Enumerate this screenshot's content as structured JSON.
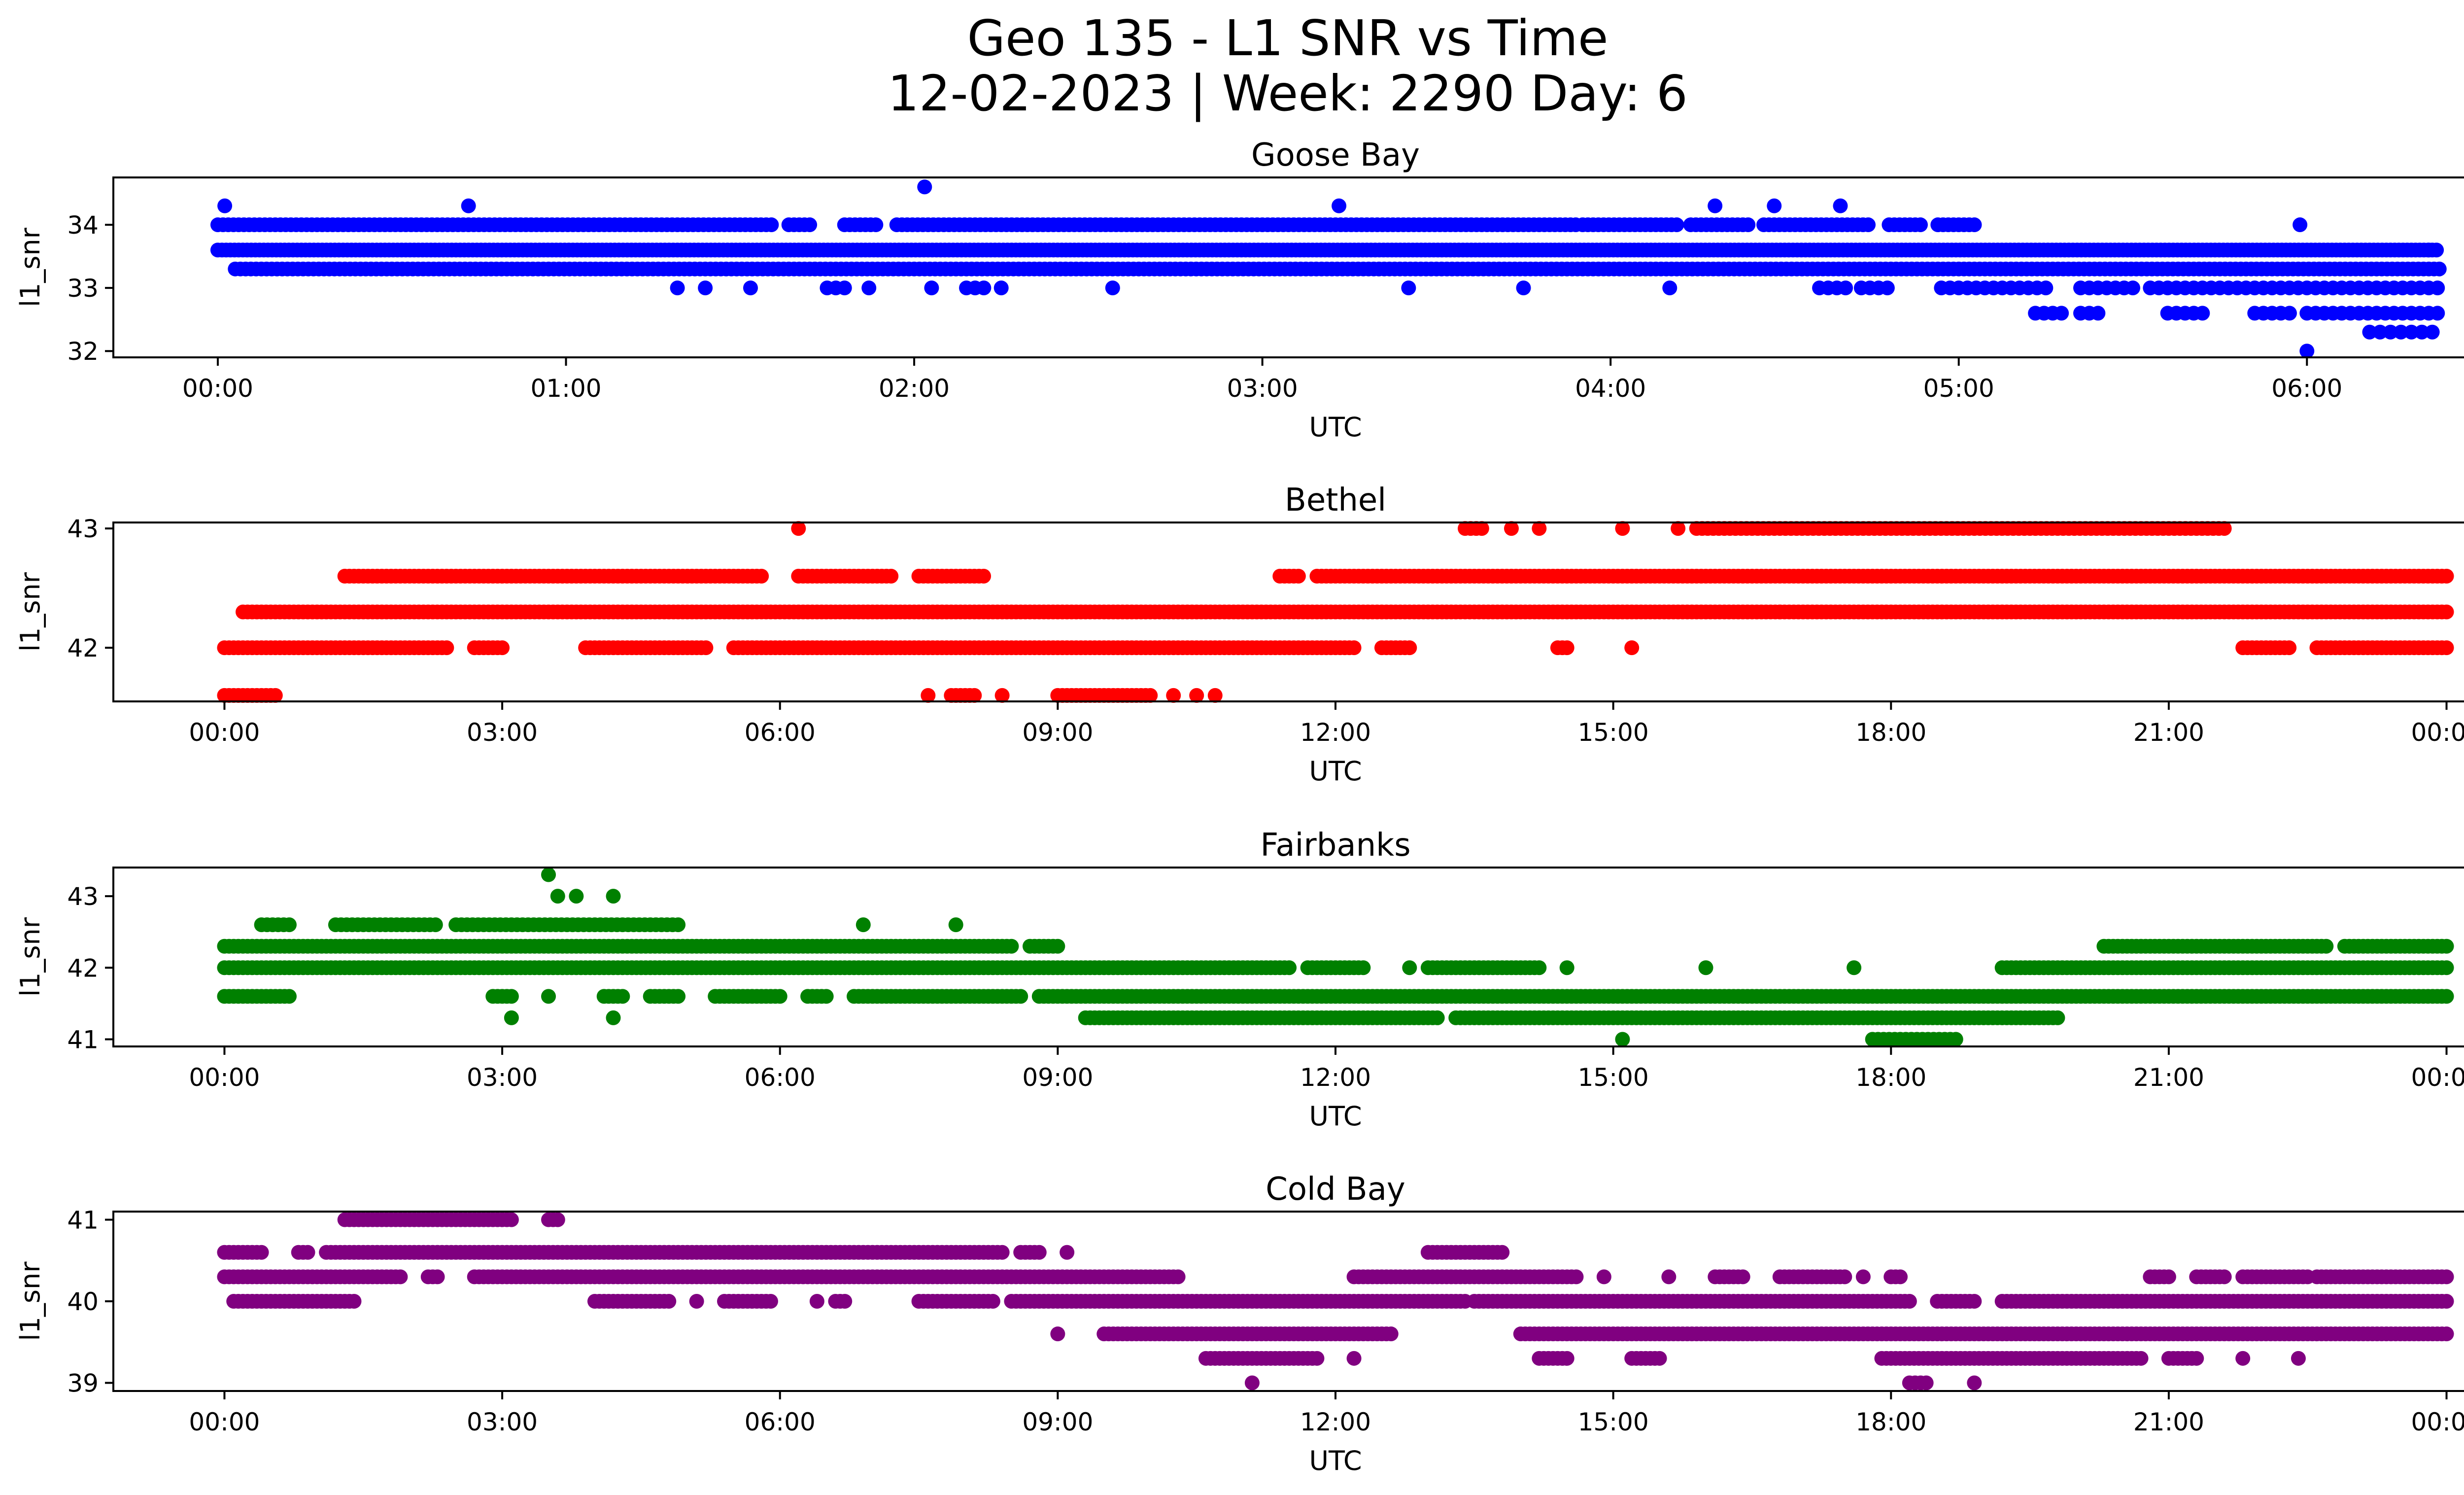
{
  "figure": {
    "title_line1": "Geo 135 - L1 SNR vs Time",
    "title_line2": "12-02-2023 | Week: 2290 Day: 6"
  },
  "chart_data": [
    {
      "type": "scatter",
      "title": "Goose Bay",
      "xlabel": "UTC",
      "ylabel": "l1_snr",
      "color": "#0000ff",
      "x_unit": "hours UTC",
      "xlim": [
        -0.3,
        6.72
      ],
      "ylim": [
        31.9,
        34.75
      ],
      "xticks": [
        {
          "value": 0,
          "label": "00:00"
        },
        {
          "value": 1,
          "label": "01:00"
        },
        {
          "value": 2,
          "label": "02:00"
        },
        {
          "value": 3,
          "label": "03:00"
        },
        {
          "value": 4,
          "label": "04:00"
        },
        {
          "value": 5,
          "label": "05:00"
        },
        {
          "value": 6,
          "label": "06:00"
        }
      ],
      "yticks": [
        {
          "value": 32,
          "label": "32"
        },
        {
          "value": 33,
          "label": "33"
        },
        {
          "value": 34,
          "label": "34"
        }
      ],
      "series": [
        {
          "y": 34.0,
          "segments": [
            [
              0,
              1.6
            ],
            [
              1.64,
              1.7
            ],
            [
              1.8,
              1.9
            ],
            [
              1.95,
              3.9
            ],
            [
              3.92,
              4.2
            ],
            [
              4.23,
              4.4
            ],
            [
              4.44,
              4.75
            ],
            [
              4.8,
              4.9
            ],
            [
              4.94,
              5.05
            ]
          ],
          "step": 0.015
        },
        {
          "y": 33.6,
          "segments": [
            [
              0,
              6.38
            ]
          ],
          "step": 0.012
        },
        {
          "y": 33.3,
          "segments": [
            [
              0.05,
              6.38
            ]
          ],
          "step": 0.015
        },
        {
          "y": 33.0,
          "segments": [
            [
              1.32,
              1.32
            ],
            [
              1.4,
              1.4
            ],
            [
              1.53,
              1.53
            ],
            [
              1.75,
              1.82
            ],
            [
              1.87,
              1.87
            ],
            [
              2.05,
              2.05
            ],
            [
              2.15,
              2.2
            ],
            [
              2.25,
              2.25
            ],
            [
              2.57,
              2.57
            ],
            [
              3.42,
              3.42
            ],
            [
              3.75,
              3.75
            ],
            [
              4.17,
              4.17
            ],
            [
              4.6,
              4.68
            ],
            [
              4.72,
              4.8
            ],
            [
              4.95,
              5.25
            ],
            [
              5.35,
              5.5
            ],
            [
              5.55,
              6.38
            ]
          ],
          "step": 0.025
        },
        {
          "y": 32.6,
          "segments": [
            [
              5.22,
              5.3
            ],
            [
              5.35,
              5.4
            ],
            [
              5.6,
              5.7
            ],
            [
              5.85,
              5.95
            ],
            [
              6.0,
              6.38
            ]
          ],
          "step": 0.025
        },
        {
          "y": 32.3,
          "segments": [
            [
              6.18,
              6.38
            ]
          ],
          "step": 0.03
        }
      ],
      "points": [
        [
          0.02,
          34.3
        ],
        [
          0.72,
          34.3
        ],
        [
          2.03,
          34.6
        ],
        [
          3.22,
          34.3
        ],
        [
          4.3,
          34.3
        ],
        [
          4.47,
          34.3
        ],
        [
          4.66,
          34.3
        ],
        [
          5.98,
          34.0
        ],
        [
          6.0,
          32.0
        ],
        [
          6.35,
          33.6
        ]
      ]
    },
    {
      "type": "scatter",
      "title": "Bethel",
      "xlabel": "UTC",
      "ylabel": "l1_snr",
      "color": "#ff0000",
      "x_unit": "hours UTC",
      "xlim": [
        -1.2,
        25.2
      ],
      "ylim": [
        41.55,
        43.05
      ],
      "xticks": [
        {
          "value": 0,
          "label": "00:00"
        },
        {
          "value": 3,
          "label": "03:00"
        },
        {
          "value": 6,
          "label": "06:00"
        },
        {
          "value": 9,
          "label": "09:00"
        },
        {
          "value": 12,
          "label": "12:00"
        },
        {
          "value": 15,
          "label": "15:00"
        },
        {
          "value": 18,
          "label": "18:00"
        },
        {
          "value": 21,
          "label": "21:00"
        },
        {
          "value": 24,
          "label": "00:00"
        }
      ],
      "yticks": [
        {
          "value": 42,
          "label": "42"
        },
        {
          "value": 43,
          "label": "43"
        }
      ],
      "series": [
        {
          "y": 43.0,
          "segments": [
            [
              13.4,
              13.6
            ],
            [
              13.9,
              13.9
            ],
            [
              14.2,
              14.2
            ],
            [
              15.1,
              15.1
            ],
            [
              15.7,
              15.7
            ],
            [
              15.9,
              21.6
            ]
          ],
          "step": 0.06
        },
        {
          "y": 42.6,
          "segments": [
            [
              1.3,
              5.8
            ],
            [
              6.2,
              7.2
            ],
            [
              7.5,
              8.2
            ],
            [
              11.4,
              11.6
            ],
            [
              11.8,
              24
            ]
          ],
          "step": 0.05
        },
        {
          "y": 42.3,
          "segments": [
            [
              0.2,
              16.8
            ],
            [
              16.8,
              24
            ]
          ],
          "step": 0.05
        },
        {
          "y": 42.0,
          "segments": [
            [
              0,
              2.4
            ],
            [
              2.7,
              3.0
            ],
            [
              3.9,
              5.2
            ],
            [
              5.5,
              12.2
            ],
            [
              12.5,
              12.8
            ],
            [
              14.4,
              14.5
            ],
            [
              15.2,
              15.2
            ],
            [
              21.8,
              22.3
            ],
            [
              22.6,
              24
            ]
          ],
          "step": 0.05
        },
        {
          "y": 41.6,
          "segments": [
            [
              0,
              0.55
            ],
            [
              7.6,
              7.6
            ],
            [
              7.85,
              8.1
            ],
            [
              8.4,
              8.4
            ],
            [
              9.0,
              10.0
            ],
            [
              10.25,
              10.25
            ],
            [
              10.5,
              10.5
            ],
            [
              10.7,
              10.7
            ]
          ],
          "step": 0.05
        }
      ],
      "points": [
        [
          6.2,
          43.0
        ]
      ]
    },
    {
      "type": "scatter",
      "title": "Fairbanks",
      "xlabel": "UTC",
      "ylabel": "l1_snr",
      "color": "#008000",
      "x_unit": "hours UTC",
      "xlim": [
        -1.2,
        25.2
      ],
      "ylim": [
        40.9,
        43.4
      ],
      "xticks": [
        {
          "value": 0,
          "label": "00:00"
        },
        {
          "value": 3,
          "label": "03:00"
        },
        {
          "value": 6,
          "label": "06:00"
        },
        {
          "value": 9,
          "label": "09:00"
        },
        {
          "value": 12,
          "label": "12:00"
        },
        {
          "value": 15,
          "label": "15:00"
        },
        {
          "value": 18,
          "label": "18:00"
        },
        {
          "value": 21,
          "label": "21:00"
        },
        {
          "value": 24,
          "label": "00:00"
        }
      ],
      "yticks": [
        {
          "value": 41,
          "label": "41"
        },
        {
          "value": 42,
          "label": "42"
        },
        {
          "value": 43,
          "label": "43"
        }
      ],
      "series": [
        {
          "y": 42.6,
          "segments": [
            [
              0.4,
              0.7
            ],
            [
              1.2,
              2.3
            ],
            [
              2.5,
              4.9
            ]
          ],
          "step": 0.06
        },
        {
          "y": 42.3,
          "segments": [
            [
              0,
              8.5
            ],
            [
              8.7,
              9.0
            ],
            [
              20.3,
              22.7
            ],
            [
              22.9,
              24
            ]
          ],
          "step": 0.05
        },
        {
          "y": 42.0,
          "segments": [
            [
              0,
              11.5
            ],
            [
              11.7,
              12.3
            ],
            [
              12.8,
              12.8
            ],
            [
              13.0,
              14.2
            ],
            [
              14.5,
              14.5
            ],
            [
              16.0,
              16.0
            ],
            [
              17.6,
              17.6
            ],
            [
              19.2,
              24
            ]
          ],
          "step": 0.05
        },
        {
          "y": 41.6,
          "segments": [
            [
              0,
              0.7
            ],
            [
              2.9,
              3.1
            ],
            [
              3.5,
              3.5
            ],
            [
              4.1,
              4.3
            ],
            [
              4.6,
              4.9
            ],
            [
              5.3,
              6.0
            ],
            [
              6.3,
              6.5
            ],
            [
              6.8,
              8.6
            ],
            [
              8.8,
              24
            ]
          ],
          "step": 0.05
        },
        {
          "y": 41.3,
          "segments": [
            [
              9.3,
              13.1
            ],
            [
              13.3,
              19.8
            ]
          ],
          "step": 0.05
        },
        {
          "y": 41.0,
          "segments": [
            [
              15.1,
              15.1
            ],
            [
              17.8,
              18.7
            ]
          ],
          "step": 0.06
        }
      ],
      "points": [
        [
          3.5,
          43.3
        ],
        [
          3.6,
          43.0
        ],
        [
          3.8,
          43.0
        ],
        [
          4.2,
          43.0
        ],
        [
          3.1,
          41.3
        ],
        [
          4.2,
          41.3
        ],
        [
          6.9,
          42.6
        ],
        [
          7.9,
          42.6
        ]
      ]
    },
    {
      "type": "scatter",
      "title": "Cold Bay",
      "xlabel": "UTC",
      "ylabel": "l1_snr",
      "color": "#800080",
      "x_unit": "hours UTC",
      "xlim": [
        -1.2,
        25.2
      ],
      "ylim": [
        38.9,
        41.1
      ],
      "xticks": [
        {
          "value": 0,
          "label": "00:00"
        },
        {
          "value": 3,
          "label": "03:00"
        },
        {
          "value": 6,
          "label": "06:00"
        },
        {
          "value": 9,
          "label": "09:00"
        },
        {
          "value": 12,
          "label": "12:00"
        },
        {
          "value": 15,
          "label": "15:00"
        },
        {
          "value": 18,
          "label": "18:00"
        },
        {
          "value": 21,
          "label": "21:00"
        },
        {
          "value": 24,
          "label": "00:00"
        }
      ],
      "yticks": [
        {
          "value": 39,
          "label": "39"
        },
        {
          "value": 40,
          "label": "40"
        },
        {
          "value": 41,
          "label": "41"
        }
      ],
      "series": [
        {
          "y": 41.0,
          "segments": [
            [
              1.3,
              3.1
            ],
            [
              3.5,
              3.6
            ]
          ],
          "step": 0.05
        },
        {
          "y": 40.6,
          "segments": [
            [
              0,
              0.4
            ],
            [
              0.8,
              0.9
            ],
            [
              1.1,
              8.4
            ],
            [
              8.6,
              8.8
            ],
            [
              9.1,
              9.1
            ],
            [
              13.0,
              13.8
            ]
          ],
          "step": 0.05
        },
        {
          "y": 40.3,
          "segments": [
            [
              0,
              1.9
            ],
            [
              2.2,
              2.3
            ],
            [
              2.7,
              10.3
            ],
            [
              12.2,
              14.6
            ],
            [
              14.9,
              14.9
            ],
            [
              15.6,
              15.6
            ],
            [
              16.1,
              16.4
            ],
            [
              16.8,
              17.5
            ],
            [
              17.7,
              17.7
            ],
            [
              18.0,
              18.1
            ],
            [
              20.8,
              21.0
            ],
            [
              21.3,
              21.6
            ],
            [
              21.8,
              22.5
            ],
            [
              22.6,
              24
            ]
          ],
          "step": 0.05
        },
        {
          "y": 40.0,
          "segments": [
            [
              0.1,
              1.4
            ],
            [
              4.0,
              4.8
            ],
            [
              5.1,
              5.1
            ],
            [
              5.4,
              5.9
            ],
            [
              6.4,
              6.4
            ],
            [
              6.6,
              6.7
            ],
            [
              7.5,
              8.3
            ],
            [
              8.5,
              13.4
            ],
            [
              13.5,
              18.2
            ],
            [
              18.5,
              18.9
            ],
            [
              19.2,
              24
            ]
          ],
          "step": 0.05
        },
        {
          "y": 39.6,
          "segments": [
            [
              9.0,
              9.0
            ],
            [
              9.5,
              12.6
            ],
            [
              14.0,
              24
            ]
          ],
          "step": 0.05
        },
        {
          "y": 39.3,
          "segments": [
            [
              10.6,
              11.8
            ],
            [
              12.2,
              12.2
            ],
            [
              14.2,
              14.5
            ],
            [
              15.2,
              15.5
            ],
            [
              17.9,
              20.7
            ],
            [
              21.0,
              21.3
            ],
            [
              21.8,
              21.8
            ],
            [
              22.4,
              22.4
            ]
          ],
          "step": 0.05
        },
        {
          "y": 39.0,
          "segments": [
            [
              11.1,
              11.1
            ],
            [
              18.2,
              18.4
            ],
            [
              18.9,
              18.9
            ]
          ],
          "step": 0.06
        }
      ],
      "points": []
    }
  ]
}
